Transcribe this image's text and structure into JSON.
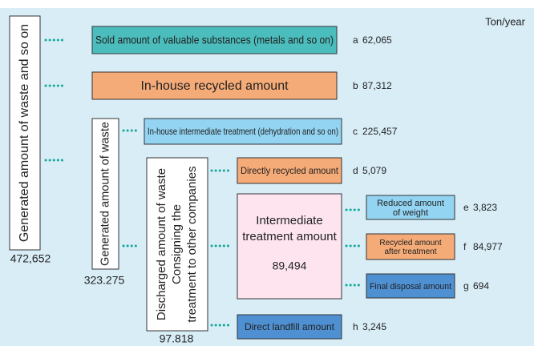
{
  "unit": "Ton/year",
  "nodes": [
    {
      "label": [
        "Generated amount of waste and so on"
      ],
      "value": "472,652"
    },
    {
      "label": [
        "Generated amount of waste"
      ],
      "value": "323.275"
    },
    {
      "label": [
        "Discharged amount of waste",
        "Consigning the",
        "treatment to other companies"
      ],
      "value": "97.818"
    },
    {
      "label": [
        "Intermediate",
        "treatment amount"
      ],
      "value": "89,494"
    }
  ],
  "items": [
    {
      "label": [
        "Sold amount of valuable substances (metals and so on)"
      ],
      "letter": "a",
      "value": "62,065"
    },
    {
      "label": [
        "In-house recycled amount"
      ],
      "letter": "b",
      "value": "87,312"
    },
    {
      "label": [
        "In-house intermediate treatment (dehydration and so on)"
      ],
      "letter": "c",
      "value": "225,457"
    },
    {
      "label": [
        "Directly recycled amount"
      ],
      "letter": "d",
      "value": "5,079"
    },
    {
      "label": [
        "Reduced amount",
        "of weight"
      ],
      "letter": "e",
      "value": "3,823"
    },
    {
      "label": [
        "Recycled amount",
        "after treatment"
      ],
      "letter": "f",
      "value": "84,977"
    },
    {
      "label": [
        "Final disposal amount"
      ],
      "letter": "g",
      "value": "694"
    },
    {
      "label": [
        "Direct landfill amount"
      ],
      "letter": "h",
      "value": "3,245"
    }
  ]
}
